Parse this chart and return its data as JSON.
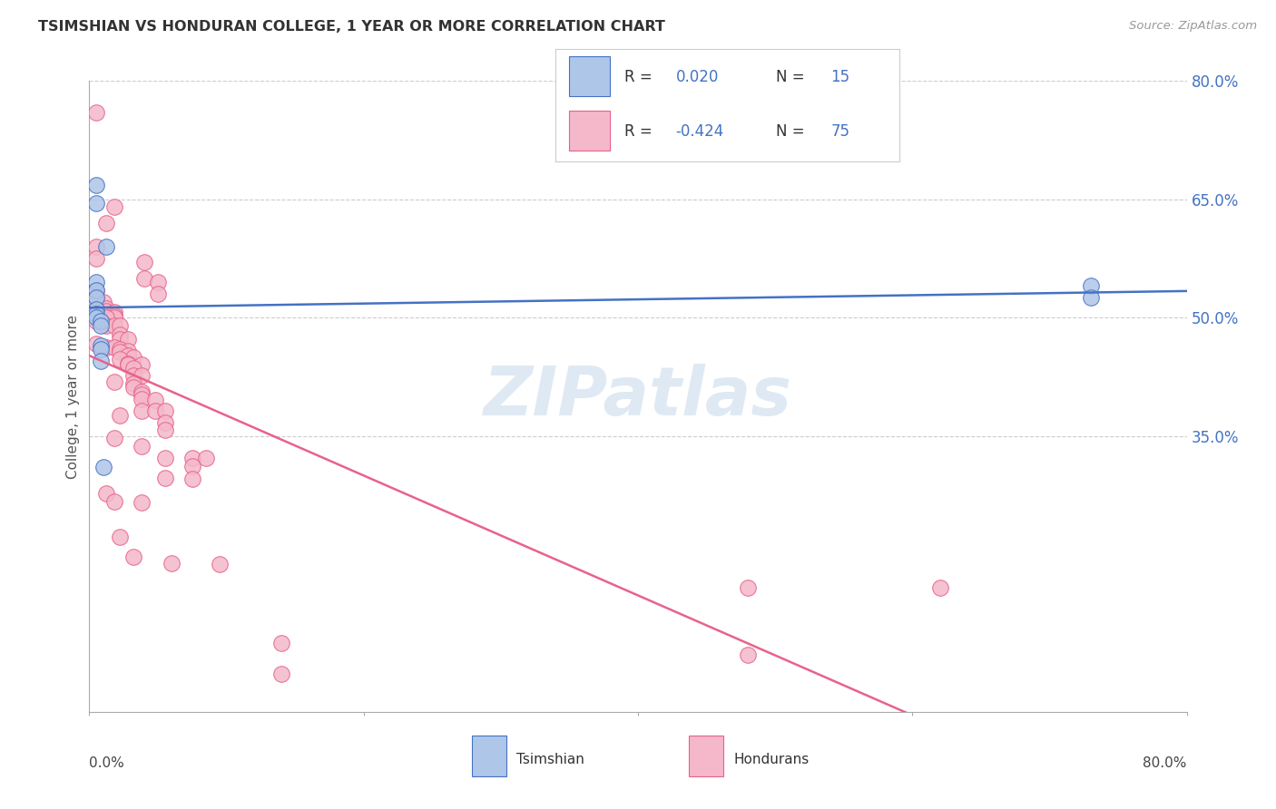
{
  "title": "TSIMSHIAN VS HONDURAN COLLEGE, 1 YEAR OR MORE CORRELATION CHART",
  "source": "Source: ZipAtlas.com",
  "ylabel": "College, 1 year or more",
  "watermark": "ZIPatlas",
  "xlim": [
    0.0,
    0.8
  ],
  "ylim": [
    0.0,
    0.8
  ],
  "tsimshian_color": "#aec6e8",
  "honduran_color": "#f4b8ca",
  "tsimshian_line_color": "#4472c4",
  "honduran_line_color": "#e8628a",
  "blue_text_color": "#4472c4",
  "tsimshian_scatter": [
    [
      0.005,
      0.668
    ],
    [
      0.005,
      0.645
    ],
    [
      0.012,
      0.59
    ],
    [
      0.005,
      0.545
    ],
    [
      0.005,
      0.535
    ],
    [
      0.005,
      0.525
    ],
    [
      0.005,
      0.51
    ],
    [
      0.005,
      0.505
    ],
    [
      0.005,
      0.5
    ],
    [
      0.008,
      0.495
    ],
    [
      0.008,
      0.49
    ],
    [
      0.008,
      0.465
    ],
    [
      0.008,
      0.46
    ],
    [
      0.008,
      0.445
    ],
    [
      0.01,
      0.31
    ],
    [
      0.73,
      0.54
    ],
    [
      0.73,
      0.525
    ]
  ],
  "honduran_scatter": [
    [
      0.005,
      0.76
    ],
    [
      0.018,
      0.64
    ],
    [
      0.012,
      0.62
    ],
    [
      0.005,
      0.59
    ],
    [
      0.005,
      0.575
    ],
    [
      0.04,
      0.57
    ],
    [
      0.04,
      0.55
    ],
    [
      0.05,
      0.545
    ],
    [
      0.005,
      0.535
    ],
    [
      0.005,
      0.525
    ],
    [
      0.005,
      0.52
    ],
    [
      0.01,
      0.52
    ],
    [
      0.05,
      0.53
    ],
    [
      0.012,
      0.512
    ],
    [
      0.012,
      0.508
    ],
    [
      0.018,
      0.507
    ],
    [
      0.018,
      0.503
    ],
    [
      0.018,
      0.5
    ],
    [
      0.012,
      0.5
    ],
    [
      0.005,
      0.495
    ],
    [
      0.012,
      0.49
    ],
    [
      0.018,
      0.49
    ],
    [
      0.022,
      0.49
    ],
    [
      0.022,
      0.478
    ],
    [
      0.022,
      0.472
    ],
    [
      0.028,
      0.472
    ],
    [
      0.005,
      0.467
    ],
    [
      0.012,
      0.462
    ],
    [
      0.018,
      0.462
    ],
    [
      0.022,
      0.46
    ],
    [
      0.028,
      0.458
    ],
    [
      0.022,
      0.456
    ],
    [
      0.028,
      0.452
    ],
    [
      0.032,
      0.45
    ],
    [
      0.022,
      0.447
    ],
    [
      0.028,
      0.442
    ],
    [
      0.028,
      0.44
    ],
    [
      0.038,
      0.44
    ],
    [
      0.032,
      0.436
    ],
    [
      0.032,
      0.427
    ],
    [
      0.038,
      0.426
    ],
    [
      0.018,
      0.418
    ],
    [
      0.032,
      0.416
    ],
    [
      0.032,
      0.412
    ],
    [
      0.038,
      0.406
    ],
    [
      0.038,
      0.402
    ],
    [
      0.038,
      0.397
    ],
    [
      0.048,
      0.396
    ],
    [
      0.038,
      0.382
    ],
    [
      0.048,
      0.382
    ],
    [
      0.055,
      0.382
    ],
    [
      0.022,
      0.376
    ],
    [
      0.055,
      0.367
    ],
    [
      0.055,
      0.357
    ],
    [
      0.018,
      0.347
    ],
    [
      0.038,
      0.337
    ],
    [
      0.055,
      0.322
    ],
    [
      0.075,
      0.322
    ],
    [
      0.085,
      0.322
    ],
    [
      0.075,
      0.312
    ],
    [
      0.055,
      0.297
    ],
    [
      0.075,
      0.296
    ],
    [
      0.012,
      0.277
    ],
    [
      0.018,
      0.267
    ],
    [
      0.038,
      0.266
    ],
    [
      0.022,
      0.222
    ],
    [
      0.032,
      0.197
    ],
    [
      0.06,
      0.188
    ],
    [
      0.095,
      0.187
    ],
    [
      0.48,
      0.158
    ],
    [
      0.48,
      0.072
    ],
    [
      0.62,
      0.158
    ],
    [
      0.14,
      0.087
    ],
    [
      0.14,
      0.048
    ]
  ],
  "background_color": "#ffffff",
  "grid_color": "#cccccc",
  "title_color": "#333333",
  "axis_label_color": "#555555"
}
